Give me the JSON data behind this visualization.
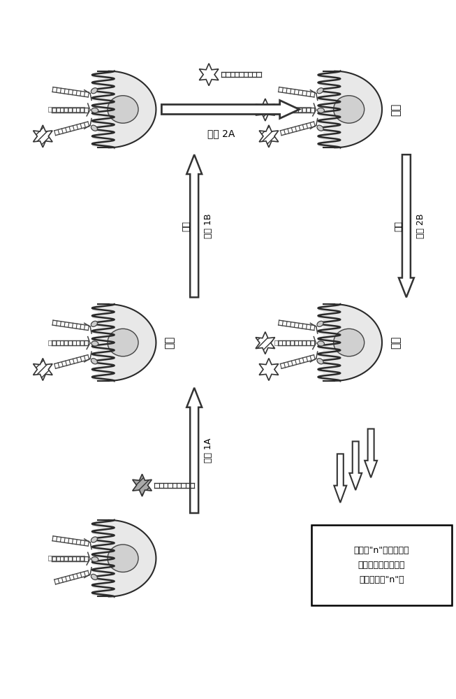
{
  "bg_color": "#ffffff",
  "figure_width": 6.53,
  "figure_height": 10.0,
  "cell_fill": "#e8e8e8",
  "cell_edge": "#444444",
  "nucleus_fill": "#d0d0d0",
  "coil_color": "#2a2a2a",
  "probe_color": "#444444",
  "star_edge": "#444444",
  "arrow_fill": "#ffffff",
  "arrow_edge": "#333333",
  "text_color": "#000000",
  "labels": {
    "step2A": "步骤 2A",
    "step1B": "步骤 1B",
    "step1B_wash": "漂白",
    "step2B": "步骤 2B",
    "step2B_wash": "漂白",
    "step1A": "步骤 1A",
    "image_left": "成像",
    "image_right1": "成像",
    "image_right2": "成像",
    "box_text": "为了对\"n\"个数目的物\n种成像，将成像和漂\n白步骤重复\"n\"次"
  }
}
